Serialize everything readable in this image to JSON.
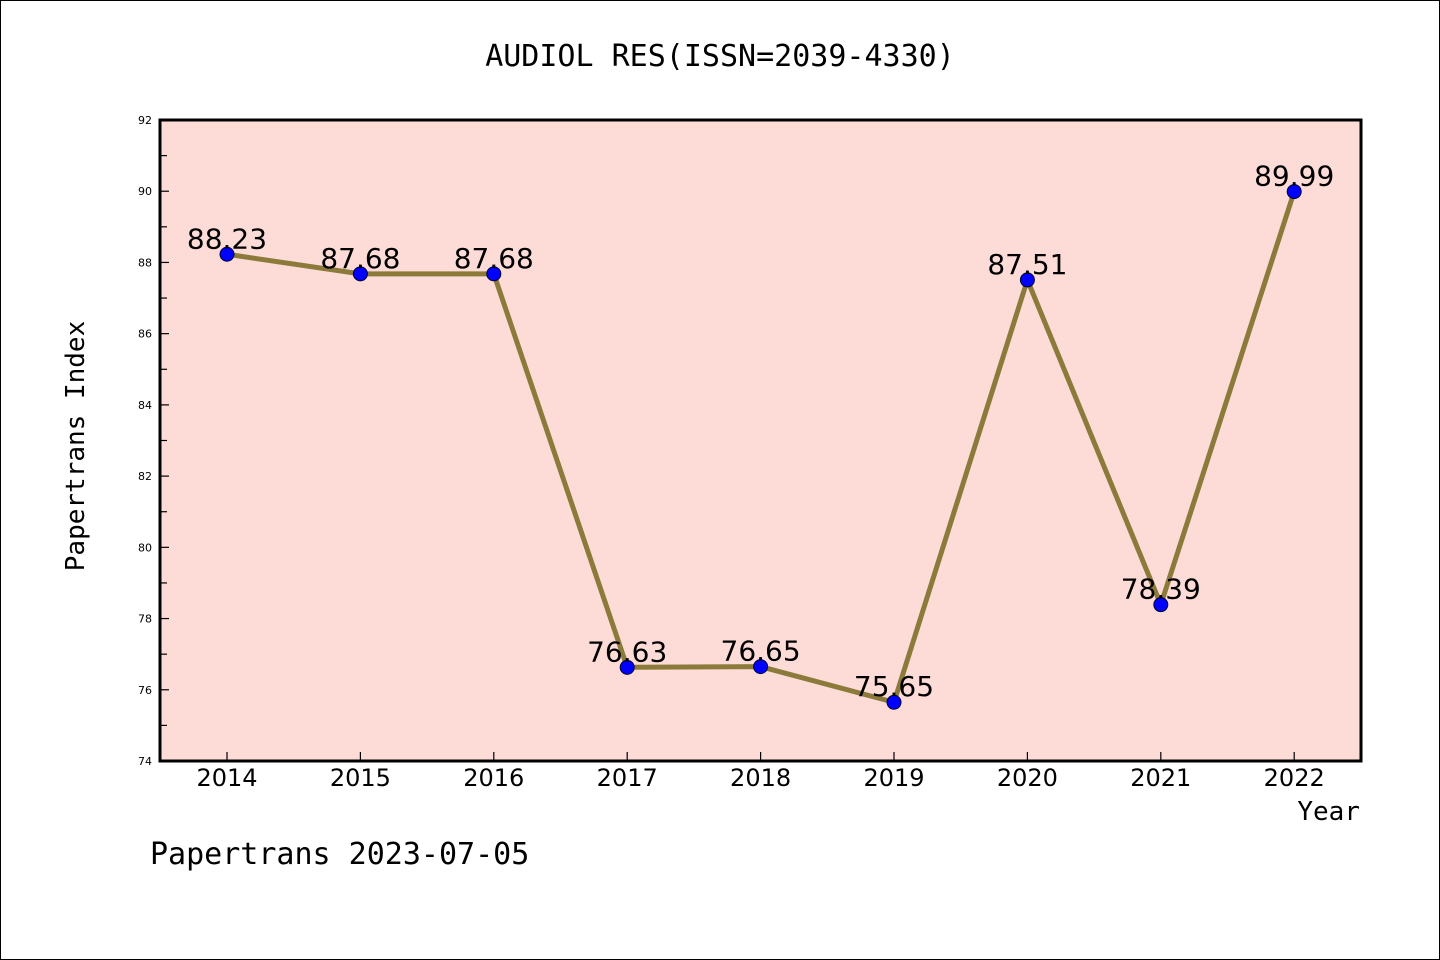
{
  "chart_data": {
    "type": "line",
    "title": "AUDIOL RES(ISSN=2039-4330)",
    "xlabel": "Year",
    "ylabel": "Papertrans Index",
    "categories": [
      "2014",
      "2015",
      "2016",
      "2017",
      "2018",
      "2019",
      "2020",
      "2021",
      "2022"
    ],
    "series": [
      {
        "values": [
          88.23,
          87.68,
          87.68,
          76.63,
          76.65,
          75.65,
          87.51,
          78.39,
          89.99
        ],
        "labels": [
          "88.23",
          "87.68",
          "87.68",
          "76.63",
          "76.65",
          "75.65",
          "87.51",
          "78.39",
          "89.99"
        ],
        "line_color": "#8b7a3a",
        "marker_color": "#0000ff"
      }
    ],
    "ylim": [
      74,
      92
    ],
    "yticks": [
      "74",
      "76",
      "78",
      "80",
      "82",
      "84",
      "86",
      "88",
      "90",
      "92"
    ],
    "grid": false,
    "legend": "none",
    "plot_background": "#fddcd8"
  },
  "footer": "Papertrans 2023-07-05"
}
